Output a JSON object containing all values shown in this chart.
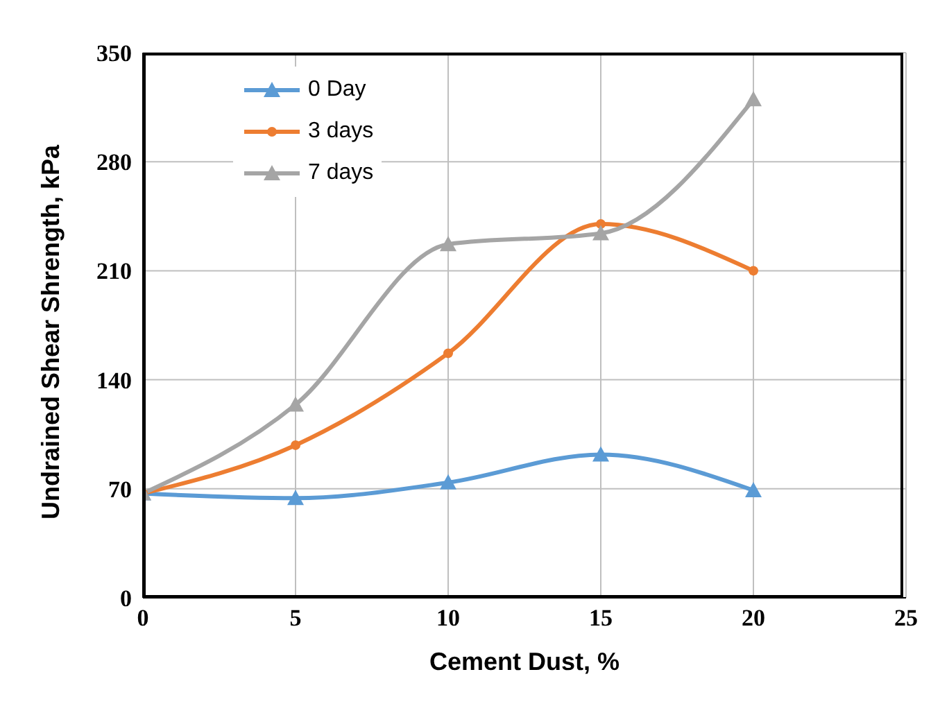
{
  "chart_data": {
    "type": "line",
    "xlabel": "Cement Dust, %",
    "ylabel": "Undrained Shear Shrength, kPa",
    "x": [
      0,
      5,
      10,
      15,
      20
    ],
    "series": [
      {
        "name": "0 Day",
        "color": "#5b9bd5",
        "marker": "triangle",
        "values": [
          67,
          64,
          74,
          92,
          69
        ]
      },
      {
        "name": "3 days",
        "color": "#ed7d31",
        "marker": "circle",
        "values": [
          67,
          98,
          157,
          240,
          210
        ]
      },
      {
        "name": "7 days",
        "color": "#a5a5a5",
        "marker": "triangle",
        "values": [
          67,
          124,
          227,
          234,
          320
        ]
      }
    ],
    "xlim": [
      0,
      25
    ],
    "xticks": [
      0,
      5,
      10,
      15,
      20,
      25
    ],
    "ylim": [
      0,
      350
    ],
    "yticks": [
      0,
      70,
      140,
      210,
      280,
      350
    ],
    "grid": true,
    "legend": "top left"
  }
}
